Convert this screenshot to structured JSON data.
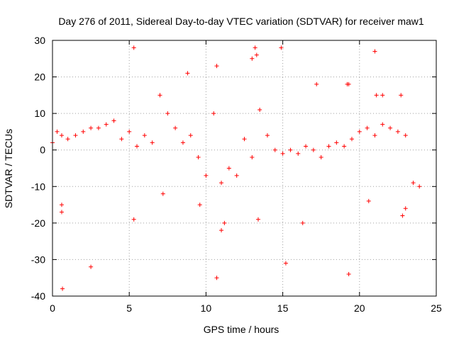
{
  "chart_data": {
    "type": "scatter",
    "title": "Day 276 of 2011, Sidereal Day-to-day VTEC variation (SDTVAR) for receiver maw1",
    "xlabel": "GPS time / hours",
    "ylabel": "SDTVAR / TECUs",
    "xlim": [
      0,
      25
    ],
    "ylim": [
      -40,
      30
    ],
    "xticks": [
      0,
      5,
      10,
      15,
      20,
      25
    ],
    "xtick_labels": [
      "0",
      "5",
      "10",
      "15",
      "20",
      "25"
    ],
    "yticks": [
      -40,
      -30,
      -20,
      -10,
      0,
      10,
      20,
      30
    ],
    "ytick_labels": [
      "-40",
      "-30",
      "-20",
      "-10",
      "0",
      "10",
      "20",
      "30"
    ],
    "grid": true,
    "marker": "+",
    "color": "#ff0000",
    "series": [
      {
        "name": "SDTVAR",
        "x": [
          0.0,
          0.3,
          0.6,
          1.0,
          1.5,
          2.0,
          2.5,
          3.0,
          3.5,
          4.0,
          4.5,
          5.0,
          5.5,
          6.0,
          6.5,
          7.0,
          7.5,
          8.0,
          8.5,
          9.0,
          9.5,
          10.0,
          10.5,
          11.0,
          11.5,
          12.0,
          12.5,
          13.0,
          13.5,
          14.0,
          14.5,
          15.0,
          15.5,
          16.0,
          16.5,
          17.0,
          17.5,
          18.0,
          18.5,
          19.0,
          19.5,
          20.0,
          20.5,
          21.0,
          21.5,
          22.0,
          22.5,
          23.0,
          23.5,
          23.9,
          0.6,
          0.6,
          0.65,
          2.5,
          5.3,
          5.3,
          7.2,
          8.8,
          9.6,
          10.7,
          10.7,
          11.0,
          11.2,
          13.0,
          13.2,
          13.3,
          13.4,
          14.9,
          15.2,
          16.3,
          17.2,
          19.2,
          19.3,
          19.3,
          20.6,
          21.0,
          21.1,
          21.5,
          22.7,
          22.8,
          23.0
        ],
        "y": [
          2,
          5,
          4,
          3,
          4,
          5,
          6,
          6,
          7,
          8,
          3,
          5,
          1,
          4,
          2,
          15,
          10,
          6,
          2,
          4,
          -2,
          -7,
          10,
          -9,
          -5,
          -7,
          3,
          -2,
          11,
          4,
          0,
          -1,
          0,
          -1,
          1,
          0,
          -2,
          1,
          2,
          1,
          3,
          5,
          6,
          4,
          7,
          6,
          5,
          4,
          -9,
          -10,
          -15,
          -17,
          -38,
          -32,
          28,
          -19,
          -12,
          21,
          -15,
          -35,
          23,
          -22,
          -20,
          25,
          28,
          26,
          -19,
          28,
          -31,
          -20,
          18,
          18,
          -34,
          18,
          -14,
          27,
          15,
          15,
          15,
          -18,
          -16
        ]
      }
    ]
  }
}
